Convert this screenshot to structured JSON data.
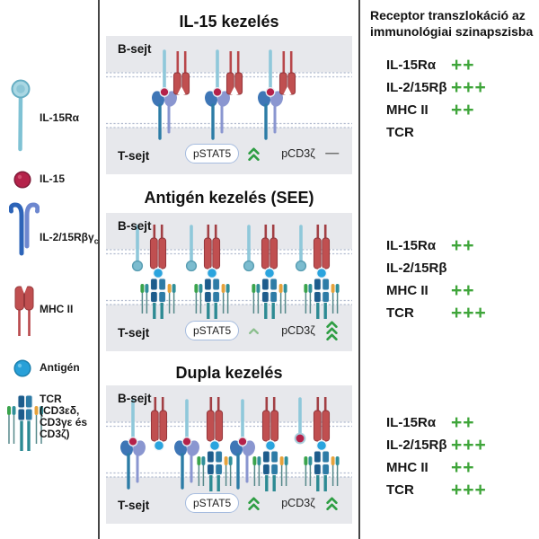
{
  "dash": "—",
  "legend": {
    "items": [
      {
        "name": "il15ra",
        "label": "IL-15Rα"
      },
      {
        "name": "il15",
        "label": "IL-15"
      },
      {
        "name": "il215rbgc",
        "label": "IL-2/15Rβγ",
        "label_sub": "c"
      },
      {
        "name": "mhc2",
        "label": "MHC II"
      },
      {
        "name": "antigen",
        "label": "Antigén"
      },
      {
        "name": "tcr",
        "label_lines": [
          "TCR",
          "(CD3εδ,",
          "CD3γε és",
          "CD3ζ)"
        ]
      }
    ]
  },
  "panels": [
    {
      "title": "IL-15 kezelés",
      "b_cell": "B-sejt",
      "t_cell": "T-sejt",
      "pstat5_label": "pSTAT5",
      "pstat5_chevrons": 2,
      "pcd3z_label": "pCD3ζ",
      "pcd3z_chevrons": 0
    },
    {
      "title": "Antigén kezelés (SEE)",
      "b_cell": "B-sejt",
      "t_cell": "T-sejt",
      "pstat5_label": "pSTAT5",
      "pstat5_chevrons": 1,
      "pcd3z_label": "pCD3ζ",
      "pcd3z_chevrons": 3
    },
    {
      "title": "Dupla kezelés",
      "b_cell": "B-sejt",
      "t_cell": "T-sejt",
      "pstat5_label": "pSTAT5",
      "pstat5_chevrons": 2,
      "pcd3z_label": "pCD3ζ",
      "pcd3z_chevrons": 2
    }
  ],
  "summary": {
    "title": "Receptor transzlokáció az immunológiai szinapszisba",
    "groups": [
      {
        "rows": [
          {
            "label": "IL-15Rα",
            "value": "++"
          },
          {
            "label": "IL-2/15Rβ",
            "value": "+++"
          },
          {
            "label": "MHC II",
            "value": "++"
          },
          {
            "label": "TCR",
            "value": ""
          }
        ]
      },
      {
        "rows": [
          {
            "label": "IL-15Rα",
            "value": "++"
          },
          {
            "label": "IL-2/15Rβ",
            "value": ""
          },
          {
            "label": "MHC II",
            "value": "++"
          },
          {
            "label": "TCR",
            "value": "+++"
          }
        ]
      },
      {
        "rows": [
          {
            "label": "IL-15Rα",
            "value": "++"
          },
          {
            "label": "IL-2/15Rβ",
            "value": "+++"
          },
          {
            "label": "MHC II",
            "value": "++"
          },
          {
            "label": "TCR",
            "value": "+++"
          }
        ]
      }
    ]
  },
  "colors": {
    "accent_green": "#3fa53a",
    "chevron_green": "#2f9e44",
    "chevron_light_green": "#8bbf8d",
    "il15ra_cyan": "#8fc8da",
    "il15_red": "#b5224a",
    "mhc2_red": "#c04f50",
    "antigen_blue": "#2aa4de",
    "tcr_blue": "#1d5c8c",
    "band_gray": "#e7e8ec"
  }
}
